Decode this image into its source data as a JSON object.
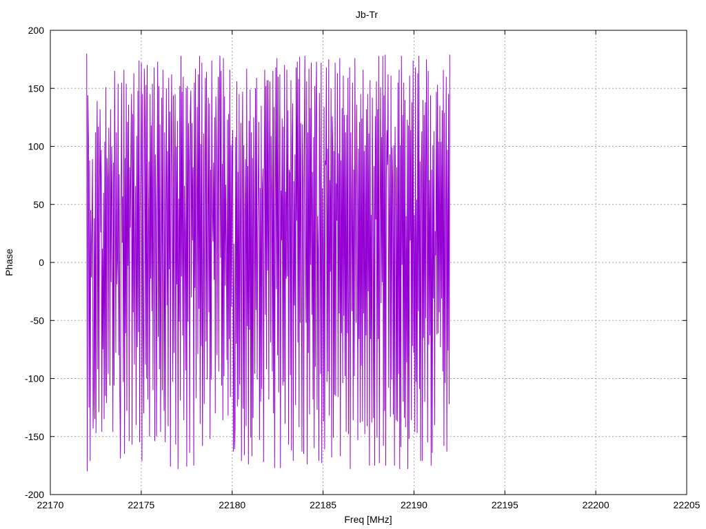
{
  "chart_data": {
    "type": "line",
    "title": "Jb-Tr",
    "xlabel": "Freq [MHz]",
    "ylabel": "Phase",
    "xlim": [
      22170,
      22205
    ],
    "ylim": [
      -200,
      200
    ],
    "xticks": [
      22170,
      22175,
      22180,
      22185,
      22190,
      22195,
      22200,
      22205
    ],
    "yticks": [
      -200,
      -150,
      -100,
      -50,
      0,
      50,
      100,
      150,
      200
    ],
    "grid": true,
    "series": [
      {
        "color": "#9400d3",
        "x_start": 22172.0,
        "x_step": 0.032,
        "values": [
          180,
          -180,
          144,
          106,
          -125,
          88,
          -171,
          45,
          -13,
          31,
          89,
          -143,
          -109,
          38,
          -135,
          112,
          -147,
          75,
          139,
          -92,
          117,
          -129,
          63,
          132,
          26,
          97,
          -146,
          12,
          -75,
          60,
          -135,
          104,
          -115,
          151,
          -121,
          90,
          72,
          -96,
          116,
          62,
          -106,
          132,
          -17,
          100,
          46,
          -146,
          86,
          -106,
          165,
          66,
          -78,
          112,
          -19,
          3,
          154,
          -80,
          76,
          -115,
          -169,
          39,
          155,
          17,
          57,
          -103,
          166,
          -165,
          90,
          -61,
          154,
          -128,
          121,
          -3,
          136,
          -154,
          82,
          30,
          99,
          145,
          -157,
          128,
          -43,
          163,
          -88,
          19,
          66,
          -140,
          109,
          -73,
          148,
          -60,
          174,
          -155,
          49,
          89,
          172,
          -171,
          145,
          -58,
          -130,
          167,
          121,
          -88,
          153,
          -100,
          170,
          -118,
          21,
          87,
          -150,
          145,
          -14,
          118,
          -42,
          154,
          -110,
          62,
          168,
          -154,
          93,
          45,
          -150,
          65,
          173,
          -64,
          152,
          -92,
          119,
          -146,
          -2,
          142,
          -110,
          166,
          4,
          -128,
          112,
          -155,
          49,
          150,
          -37,
          96,
          -141,
          159,
          -6,
          130,
          -176,
          78,
          162,
          39,
          -103,
          144,
          -78,
          83,
          145,
          -157,
          100,
          -19,
          122,
          -178,
          55,
          -51,
          152,
          -119,
          178,
          -12,
          147,
          -63,
          160,
          -136,
          66,
          25,
          -93,
          150,
          -176,
          152,
          -51,
          120,
          87,
          -164,
          128,
          148,
          -30,
          120,
          19,
          82,
          -175,
          155,
          -22,
          167,
          -117,
          50,
          134,
          -79,
          162,
          -40,
          178,
          -139,
          102,
          -72,
          172,
          -158,
          -30,
          111,
          -122,
          84,
          159,
          -68,
          164,
          -101,
          27,
          142,
          -43,
          137,
          -152,
          80,
          -101,
          174,
          44,
          18,
          86,
          -15,
          125,
          -130,
          143,
          99,
          -80,
          62,
          160,
          -94,
          138,
          178,
          4,
          165,
          -106,
          85,
          -136,
          176,
          -98,
          143,
          -20,
          67,
          14,
          -84,
          123,
          -132,
          128,
          -66,
          166,
          -116,
          101,
          -38,
          95,
          114,
          -163,
          16,
          -161,
          -144,
          108,
          -70,
          156,
          -124,
          78,
          -118,
          145,
          -105,
          32,
          120,
          -171,
          59,
          147,
          -126,
          101,
          -166,
          44,
          89,
          -141,
          167,
          -55,
          83,
          -174,
          122,
          -58,
          149,
          -151,
          112,
          -167,
          90,
          -134,
          125,
          31,
          -96,
          150,
          -41,
          159,
          -101,
          28,
          75,
          121,
          -153,
          64,
          -120,
          135,
          -109,
          62,
          81,
          -172,
          74,
          166,
          -45,
          152,
          -92,
          157,
          -7,
          157,
          -118,
          94,
          156,
          -69,
          109,
          61,
          -94,
          165,
          -130,
          134,
          -177,
          37,
          168,
          -23,
          176,
          -80,
          160,
          -112,
          66,
          162,
          -177,
          62,
          19,
          124,
          -106,
          117,
          -103,
          170,
          -139,
          61,
          -14,
          166,
          -12,
          131,
          -157,
          80,
          77,
          -97,
          157,
          -162,
          100,
          137,
          -171,
          70,
          -37,
          93,
          -123,
          168,
          36,
          173,
          -69,
          158,
          -142,
          177,
          -52,
          120,
          5,
          -163,
          119,
          71,
          -165,
          98,
          178,
          17,
          -52,
          156,
          -174,
          112,
          -78,
          167,
          -131,
          133,
          -2,
          172,
          -45,
          78,
          -118,
          108,
          -160,
          152,
          -90,
          128,
          173,
          -127,
          40,
          10,
          -171,
          146,
          71,
          -96,
          172,
          -173,
          64,
          16,
          -137,
          134,
          -161,
          88,
          84,
          168,
          -103,
          98,
          -94,
          175,
          -132,
          71,
          -8,
          150,
          -168,
          126,
          100,
          -151,
          96,
          -114,
          172,
          -115,
          68,
          36,
          163,
          -116,
          94,
          -44,
          176,
          -167,
          88,
          -61,
          133,
          -104,
          161,
          -46,
          127,
          -98,
          112,
          -146,
          127,
          -61,
          159,
          -148,
          -25,
          168,
          -178,
          112,
          40,
          -42,
          155,
          -136,
          80,
          -98,
          176,
          42,
          -52,
          136,
          60,
          -153,
          98,
          -66,
          121,
          -138,
          145,
          -89,
          124,
          -137,
          166,
          -44,
          96,
          -148,
          101,
          -63,
          132,
          -141,
          145,
          -25,
          111,
          -175,
          157,
          -66,
          41,
          -138,
          142,
          44,
          -134,
          83,
          -175,
          126,
          37,
          156,
          -151,
          132,
          -66,
          178,
          -173,
          34,
          151,
          -35,
          108,
          -17,
          178,
          -158,
          144,
          -128,
          179,
          -175,
          71,
          114,
          84,
          162,
          -108,
          34,
          93,
          -133,
          161,
          -101,
          99,
          70,
          -131,
          101,
          -175,
          117,
          61,
          -136,
          82,
          -137,
          155,
          -96,
          166,
          -178,
          101,
          -159,
          178,
          -2,
          127,
          -120,
          155,
          -134,
          140,
          -142,
          40,
          -86,
          123,
          -178,
          118,
          -152,
          161,
          19,
          114,
          -136,
          138,
          -72,
          174,
          -78,
          41,
          -146,
          168,
          -103,
          54,
          -147,
          163,
          -42,
          178,
          -109,
          87,
          -171,
          77,
          113,
          -171,
          140,
          -65,
          127,
          -120,
          138,
          -48,
          175,
          85,
          -155,
          165,
          -71,
          71,
          -63,
          144,
          -175,
          80,
          -164,
          101,
          -31,
          113,
          -140,
          27,
          6,
          147,
          -62,
          153,
          -61,
          104,
          -43,
          135,
          -73,
          104,
          -31,
          131,
          -94,
          166,
          -158,
          129,
          -104,
          37,
          160,
          -163,
          97,
          -76,
          145,
          -122,
          179
        ]
      }
    ]
  }
}
